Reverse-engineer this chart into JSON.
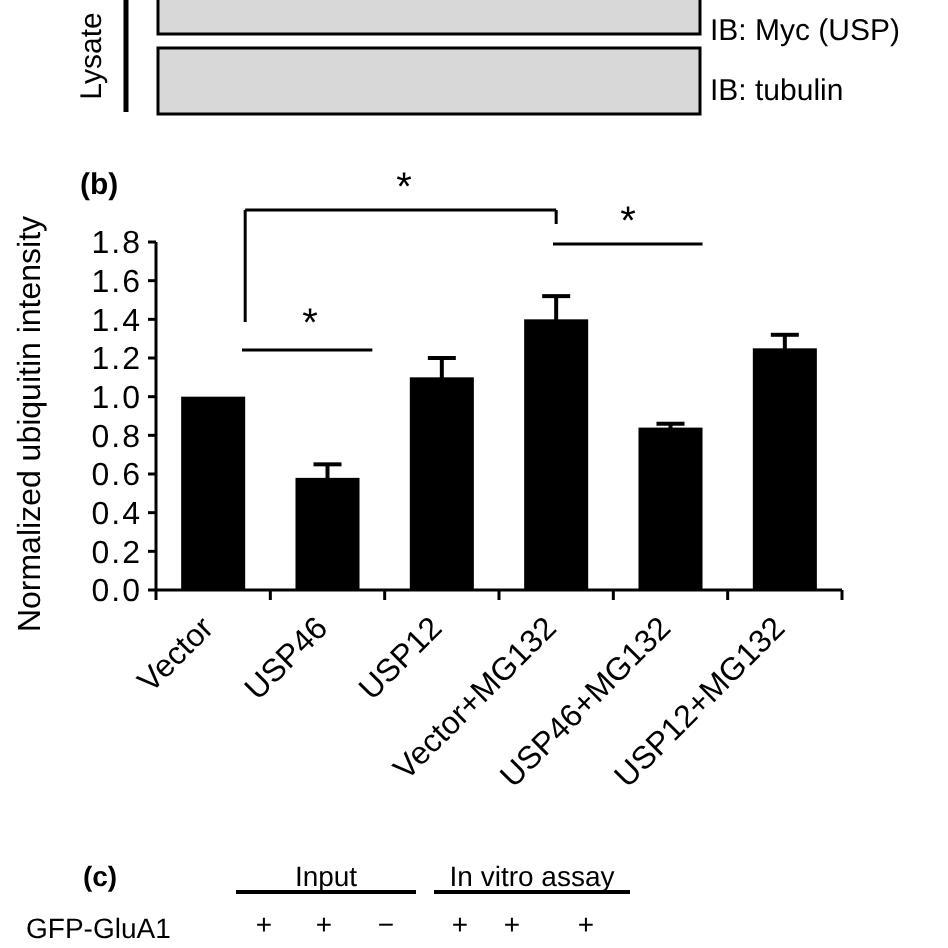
{
  "chart_data": {
    "type": "bar",
    "title": "(b)",
    "ylabel": "Normalized ubiquitin intensity",
    "categories": [
      "Vector",
      "USP46",
      "USP12",
      "Vector+MG132",
      "USP46+MG132",
      "USP12+MG132"
    ],
    "values": [
      1.0,
      0.58,
      1.1,
      1.4,
      0.84,
      1.25
    ],
    "errors": [
      null,
      0.07,
      0.1,
      0.12,
      0.02,
      0.07
    ],
    "color": "#000000",
    "ylim": [
      0,
      1.8
    ],
    "yticks": [
      {
        "value": 0,
        "label": "0.0"
      },
      0.2,
      0.4,
      0.6,
      0.8,
      {
        "value": 1,
        "label": "1.0"
      },
      1.2,
      1.4,
      1.6,
      1.8
    ],
    "annotations": [
      "*",
      "*",
      "*",
      "Lysate",
      "IB: Myc (USP)",
      "IB: tubulin",
      "(c)",
      "Input",
      "In vitro assay",
      "GFP-GluA1",
      "+",
      "+",
      "−",
      "+",
      "+",
      "+"
    ]
  }
}
